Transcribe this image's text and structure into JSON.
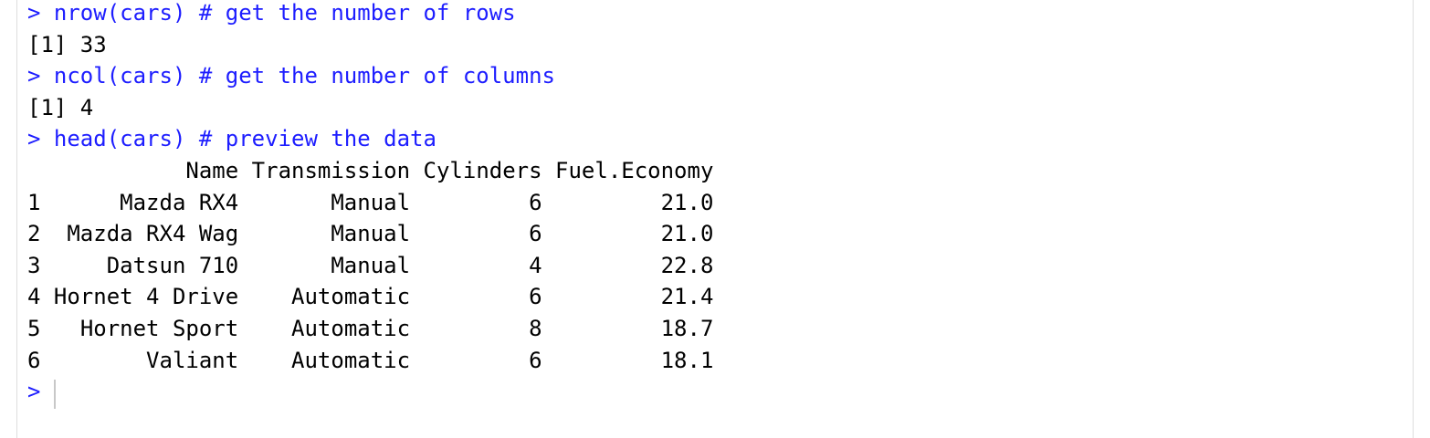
{
  "console": {
    "commands": [
      {
        "prompt": ">",
        "code": "nrow(cars) # get the number of rows",
        "output": "[1] 33"
      },
      {
        "prompt": ">",
        "code": "ncol(cars) # get the number of columns",
        "output": "[1] 4"
      },
      {
        "prompt": ">",
        "code": "head(cars) # preview the data"
      }
    ],
    "table": {
      "columns": [
        "Name",
        "Transmission",
        "Cylinders",
        "Fuel.Economy"
      ],
      "rows": [
        [
          "1",
          "Mazda RX4",
          "Manual",
          6,
          "21.0"
        ],
        [
          "2",
          "Mazda RX4 Wag",
          "Manual",
          6,
          "21.0"
        ],
        [
          "3",
          "Datsun 710",
          "Manual",
          4,
          "22.8"
        ],
        [
          "4",
          "Hornet 4 Drive",
          "Automatic",
          6,
          "21.4"
        ],
        [
          "5",
          "Hornet Sport",
          "Automatic",
          8,
          "18.7"
        ],
        [
          "6",
          "Valiant",
          "Automatic",
          6,
          "18.1"
        ]
      ]
    },
    "final_prompt": ">"
  }
}
